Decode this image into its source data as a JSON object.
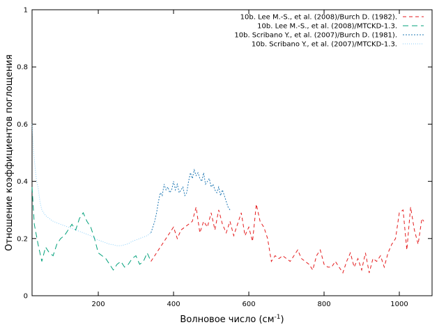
{
  "chart_data": {
    "type": "line",
    "xlabel": "Волновое число (см",
    "xlabel_sup": "-1",
    "xlabel_tail": ")",
    "ylabel": "Отношение коэффициентов поглощения",
    "xlim": [
      24,
      1087
    ],
    "ylim": [
      0,
      1
    ],
    "xticks": [
      200,
      400,
      600,
      800,
      1000
    ],
    "yticks": [
      0,
      0.2,
      0.4,
      0.6,
      0.8,
      1
    ],
    "ytick_labels": [
      "0",
      "0.2",
      "0.4",
      "0.6",
      "0.8",
      "1"
    ],
    "grid": false,
    "legend_position": "top-right",
    "series": [
      {
        "name": "10b. Lee M.-S., et al. (2008)/Burch D. (1982).",
        "color": "#e41a1c",
        "dash": "5,4",
        "x": [
          340,
          350,
          360,
          370,
          380,
          390,
          400,
          410,
          420,
          430,
          440,
          450,
          460,
          470,
          480,
          490,
          500,
          510,
          520,
          530,
          540,
          550,
          560,
          570,
          580,
          590,
          600,
          610,
          620,
          630,
          640,
          650,
          660,
          670,
          680,
          690,
          700,
          710,
          720,
          730,
          740,
          750,
          760,
          770,
          780,
          790,
          800,
          810,
          820,
          830,
          840,
          850,
          860,
          870,
          880,
          890,
          900,
          910,
          920,
          930,
          940,
          950,
          960,
          970,
          980,
          990,
          1000,
          1010,
          1020,
          1030,
          1040,
          1050,
          1060,
          1065
        ],
        "y": [
          0.12,
          0.14,
          0.16,
          0.18,
          0.2,
          0.22,
          0.24,
          0.2,
          0.23,
          0.24,
          0.25,
          0.26,
          0.31,
          0.22,
          0.26,
          0.24,
          0.29,
          0.23,
          0.3,
          0.25,
          0.22,
          0.26,
          0.21,
          0.25,
          0.29,
          0.21,
          0.24,
          0.19,
          0.32,
          0.26,
          0.24,
          0.2,
          0.12,
          0.14,
          0.13,
          0.14,
          0.13,
          0.12,
          0.14,
          0.16,
          0.13,
          0.12,
          0.11,
          0.09,
          0.14,
          0.16,
          0.11,
          0.1,
          0.1,
          0.12,
          0.1,
          0.08,
          0.12,
          0.15,
          0.1,
          0.13,
          0.09,
          0.15,
          0.08,
          0.13,
          0.12,
          0.14,
          0.1,
          0.15,
          0.18,
          0.2,
          0.29,
          0.3,
          0.16,
          0.31,
          0.23,
          0.18,
          0.27,
          0.26
        ]
      },
      {
        "name": "10b. Lee M.-S., et al. (2008)/MTCKD-1.3.",
        "color": "#00a07a",
        "dash": "8,5",
        "x": [
          24,
          30,
          40,
          50,
          60,
          70,
          80,
          90,
          100,
          110,
          120,
          130,
          140,
          150,
          160,
          170,
          180,
          190,
          200,
          210,
          220,
          230,
          240,
          250,
          260,
          270,
          280,
          290,
          300,
          310,
          320,
          330,
          340
        ],
        "y": [
          0.38,
          0.25,
          0.18,
          0.12,
          0.17,
          0.15,
          0.14,
          0.18,
          0.2,
          0.21,
          0.23,
          0.25,
          0.23,
          0.27,
          0.29,
          0.26,
          0.24,
          0.2,
          0.15,
          0.14,
          0.13,
          0.11,
          0.09,
          0.11,
          0.12,
          0.1,
          0.11,
          0.13,
          0.14,
          0.11,
          0.12,
          0.15,
          0.12
        ]
      },
      {
        "name": "10b. Scribano Y., et al. (2007)/Burch D. (1981).",
        "color": "#1f78b4",
        "dash": "2,2",
        "x": [
          340,
          345,
          350,
          355,
          360,
          365,
          370,
          375,
          380,
          385,
          390,
          395,
          400,
          405,
          410,
          415,
          420,
          425,
          430,
          435,
          440,
          445,
          450,
          455,
          460,
          465,
          470,
          475,
          480,
          485,
          490,
          495,
          500,
          505,
          510,
          515,
          520,
          525,
          530,
          535,
          540,
          545,
          550
        ],
        "y": [
          0.22,
          0.24,
          0.26,
          0.29,
          0.33,
          0.36,
          0.35,
          0.39,
          0.37,
          0.38,
          0.36,
          0.37,
          0.4,
          0.37,
          0.39,
          0.36,
          0.37,
          0.38,
          0.35,
          0.36,
          0.4,
          0.43,
          0.41,
          0.44,
          0.42,
          0.43,
          0.41,
          0.4,
          0.43,
          0.39,
          0.4,
          0.41,
          0.38,
          0.39,
          0.37,
          0.36,
          0.38,
          0.35,
          0.37,
          0.35,
          0.33,
          0.31,
          0.3
        ]
      },
      {
        "name": "10b. Scribano Y., et al. (2007)/MTCKD-1.3.",
        "color": "#87cefa",
        "dash": "1,2",
        "x": [
          24,
          28,
          32,
          36,
          40,
          45,
          50,
          60,
          70,
          80,
          90,
          100,
          110,
          120,
          130,
          140,
          150,
          160,
          170,
          180,
          190,
          200,
          210,
          220,
          230,
          240,
          250,
          260,
          270,
          280,
          290,
          300,
          310,
          320,
          330,
          340
        ],
        "y": [
          0.6,
          0.5,
          0.45,
          0.4,
          0.38,
          0.33,
          0.3,
          0.28,
          0.27,
          0.26,
          0.255,
          0.25,
          0.245,
          0.24,
          0.235,
          0.23,
          0.225,
          0.22,
          0.215,
          0.21,
          0.2,
          0.195,
          0.19,
          0.185,
          0.18,
          0.178,
          0.175,
          0.175,
          0.178,
          0.182,
          0.19,
          0.195,
          0.2,
          0.205,
          0.21,
          0.22
        ]
      }
    ]
  }
}
